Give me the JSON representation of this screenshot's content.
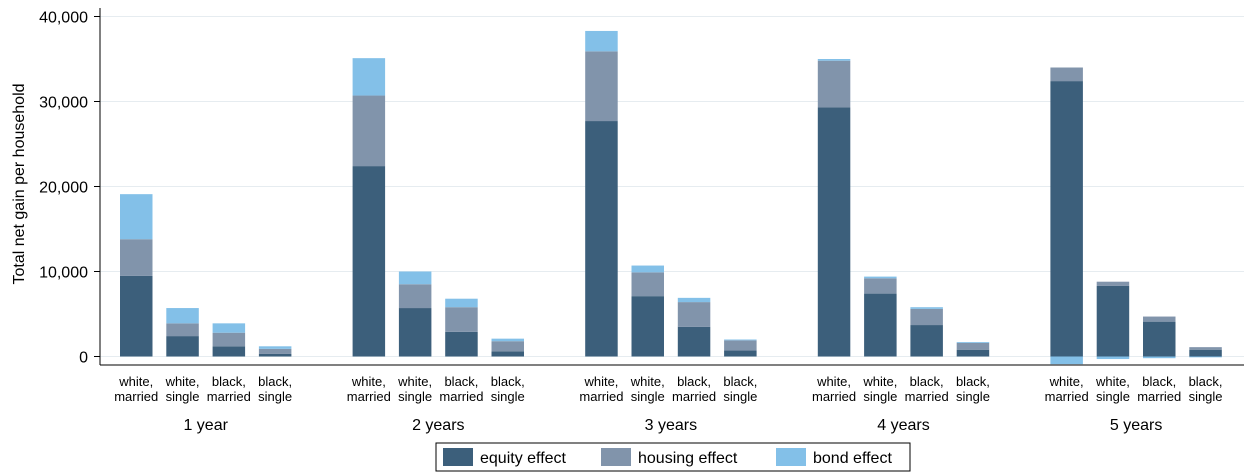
{
  "chart_data": {
    "type": "bar",
    "stacked": true,
    "ylabel": "Total net gain per household",
    "ylim": [
      -1000,
      41000
    ],
    "yticks": [
      0,
      10000,
      20000,
      30000,
      40000
    ],
    "ytick_labels": [
      "0",
      "10,000",
      "20,000",
      "30,000",
      "40,000"
    ],
    "grid": true,
    "legend_position": "bottom",
    "groups": [
      {
        "label": "1 year",
        "categories": [
          [
            "white,",
            "married"
          ],
          [
            "white,",
            "single"
          ],
          [
            "black,",
            "married"
          ],
          [
            "black,",
            "single"
          ]
        ]
      },
      {
        "label": "2 years",
        "categories": [
          [
            "white,",
            "married"
          ],
          [
            "white,",
            "single"
          ],
          [
            "black,",
            "married"
          ],
          [
            "black,",
            "single"
          ]
        ]
      },
      {
        "label": "3 years",
        "categories": [
          [
            "white,",
            "married"
          ],
          [
            "white,",
            "single"
          ],
          [
            "black,",
            "married"
          ],
          [
            "black,",
            "single"
          ]
        ]
      },
      {
        "label": "4 years",
        "categories": [
          [
            "white,",
            "married"
          ],
          [
            "white,",
            "single"
          ],
          [
            "black,",
            "married"
          ],
          [
            "black,",
            "single"
          ]
        ]
      },
      {
        "label": "5 years",
        "categories": [
          [
            "white,",
            "married"
          ],
          [
            "white,",
            "single"
          ],
          [
            "black,",
            "married"
          ],
          [
            "black,",
            "single"
          ]
        ]
      }
    ],
    "series": [
      {
        "name": "equity effect",
        "color": "#3c5f7b",
        "values": [
          [
            9500,
            2400,
            1200,
            300
          ],
          [
            22400,
            5700,
            2900,
            600
          ],
          [
            27700,
            7100,
            3500,
            700
          ],
          [
            29300,
            7400,
            3700,
            800
          ],
          [
            32400,
            8300,
            4100,
            800
          ]
        ]
      },
      {
        "name": "housing effect",
        "color": "#8194ab",
        "values": [
          [
            4300,
            1500,
            1600,
            600
          ],
          [
            8300,
            2800,
            2900,
            1200
          ],
          [
            8200,
            2800,
            2900,
            1200
          ],
          [
            5500,
            1800,
            1900,
            800
          ],
          [
            1600,
            500,
            600,
            300
          ]
        ]
      },
      {
        "name": "bond effect",
        "color": "#83c0e8",
        "values": [
          [
            5300,
            1800,
            1100,
            300
          ],
          [
            4400,
            1500,
            1000,
            300
          ],
          [
            2400,
            800,
            500,
            100
          ],
          [
            200,
            200,
            200,
            100
          ],
          [
            -900,
            -300,
            -200,
            -100
          ]
        ]
      }
    ]
  }
}
